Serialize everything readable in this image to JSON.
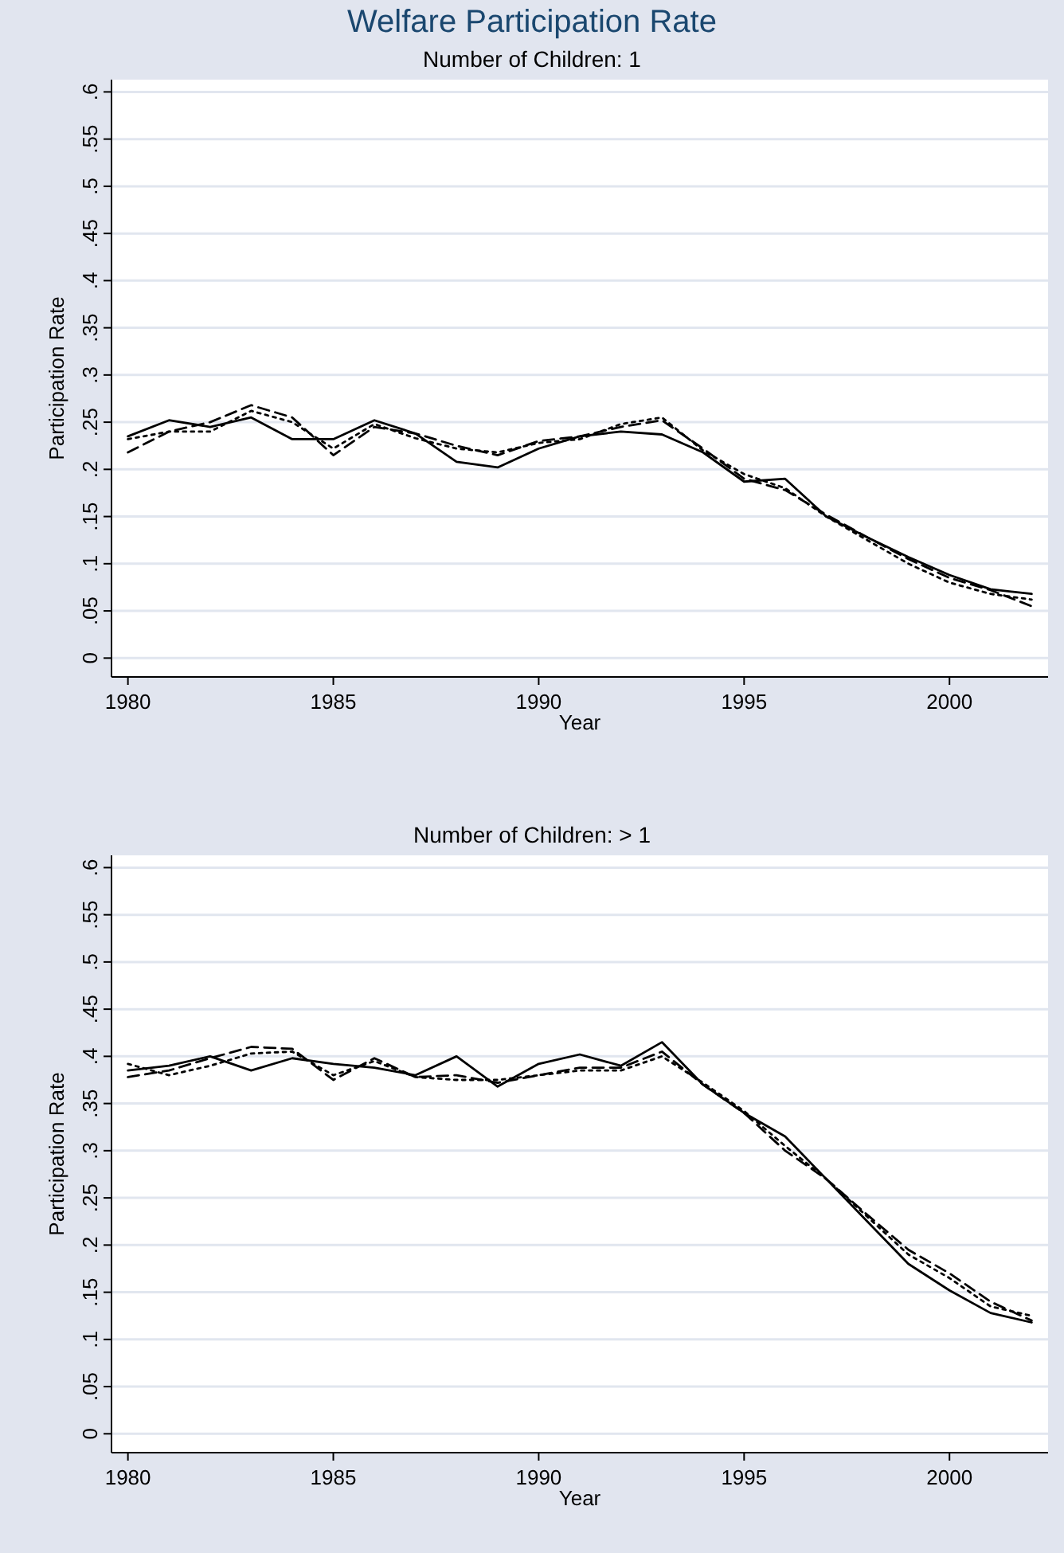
{
  "chart_data": [
    {
      "type": "line",
      "title": "Welfare Participation Rate",
      "subtitle": "Number of Children: 1",
      "xlabel": "Year",
      "ylabel": "Participation Rate",
      "grid": "y",
      "x": [
        1980,
        1981,
        1982,
        1983,
        1984,
        1985,
        1986,
        1987,
        1988,
        1989,
        1990,
        1991,
        1992,
        1993,
        1994,
        1995,
        1996,
        1997,
        1998,
        1999,
        2000,
        2001,
        2002
      ],
      "xlim": [
        1979.6,
        2002.4
      ],
      "xticks": [
        1980,
        1985,
        1990,
        1995,
        2000
      ],
      "ylim": [
        -0.02,
        0.613
      ],
      "yticks": [
        0,
        {
          "value": 0.05,
          "label": ".05"
        },
        {
          "value": 0.1,
          "label": ".1"
        },
        {
          "value": 0.15,
          "label": ".15"
        },
        {
          "value": 0.2,
          "label": ".2"
        },
        {
          "value": 0.25,
          "label": ".25"
        },
        {
          "value": 0.3,
          "label": ".3"
        },
        {
          "value": 0.35,
          "label": ".35"
        },
        {
          "value": 0.4,
          "label": ".4"
        },
        {
          "value": 0.45,
          "label": ".45"
        },
        {
          "value": 0.5,
          "label": ".5"
        },
        {
          "value": 0.55,
          "label": ".55"
        },
        {
          "value": 0.6,
          "label": ".6"
        }
      ],
      "series": [
        {
          "color": "#000000",
          "line_style": "solid",
          "values": [
            0.235,
            0.252,
            0.245,
            0.255,
            0.232,
            0.232,
            0.252,
            0.238,
            0.208,
            0.202,
            0.222,
            0.235,
            0.24,
            0.237,
            0.218,
            0.187,
            0.19,
            0.15,
            0.128,
            0.107,
            0.088,
            0.073,
            0.068
          ]
        },
        {
          "color": "#000000",
          "line_style": "dashed",
          "values": [
            0.218,
            0.24,
            0.25,
            0.268,
            0.255,
            0.215,
            0.245,
            0.238,
            0.225,
            0.215,
            0.23,
            0.235,
            0.245,
            0.252,
            0.222,
            0.19,
            0.178,
            0.152,
            0.128,
            0.105,
            0.085,
            0.072,
            0.055
          ]
        },
        {
          "color": "#000000",
          "line_style": "dotted",
          "values": [
            0.232,
            0.24,
            0.24,
            0.262,
            0.25,
            0.222,
            0.248,
            0.233,
            0.222,
            0.218,
            0.228,
            0.232,
            0.248,
            0.255,
            0.22,
            0.195,
            0.18,
            0.15,
            0.125,
            0.1,
            0.08,
            0.068,
            0.062
          ]
        }
      ]
    },
    {
      "type": "line",
      "title": "Number of Children: > 1",
      "xlabel": "Year",
      "ylabel": "Participation Rate",
      "grid": "y",
      "x": [
        1980,
        1981,
        1982,
        1983,
        1984,
        1985,
        1986,
        1987,
        1988,
        1989,
        1990,
        1991,
        1992,
        1993,
        1994,
        1995,
        1996,
        1997,
        1998,
        1999,
        2000,
        2001,
        2002
      ],
      "xlim": [
        1979.6,
        2002.4
      ],
      "xticks": [
        1980,
        1985,
        1990,
        1995,
        2000
      ],
      "ylim": [
        -0.02,
        0.613
      ],
      "yticks": [
        0,
        {
          "value": 0.05,
          "label": ".05"
        },
        {
          "value": 0.1,
          "label": ".1"
        },
        {
          "value": 0.15,
          "label": ".15"
        },
        {
          "value": 0.2,
          "label": ".2"
        },
        {
          "value": 0.25,
          "label": ".25"
        },
        {
          "value": 0.3,
          "label": ".3"
        },
        {
          "value": 0.35,
          "label": ".35"
        },
        {
          "value": 0.4,
          "label": ".4"
        },
        {
          "value": 0.45,
          "label": ".45"
        },
        {
          "value": 0.5,
          "label": ".5"
        },
        {
          "value": 0.55,
          "label": ".55"
        },
        {
          "value": 0.6,
          "label": ".6"
        }
      ],
      "series": [
        {
          "color": "#000000",
          "line_style": "solid",
          "values": [
            0.385,
            0.39,
            0.4,
            0.385,
            0.398,
            0.392,
            0.388,
            0.38,
            0.4,
            0.368,
            0.392,
            0.402,
            0.39,
            0.415,
            0.37,
            0.34,
            0.315,
            0.27,
            0.225,
            0.18,
            0.152,
            0.128,
            0.118
          ]
        },
        {
          "color": "#000000",
          "line_style": "dashed",
          "values": [
            0.378,
            0.385,
            0.398,
            0.41,
            0.408,
            0.375,
            0.398,
            0.378,
            0.38,
            0.372,
            0.38,
            0.388,
            0.388,
            0.405,
            0.37,
            0.34,
            0.3,
            0.27,
            0.232,
            0.195,
            0.17,
            0.14,
            0.12
          ]
        },
        {
          "color": "#000000",
          "line_style": "dotted",
          "values": [
            0.392,
            0.38,
            0.39,
            0.403,
            0.405,
            0.38,
            0.395,
            0.378,
            0.375,
            0.375,
            0.38,
            0.385,
            0.385,
            0.4,
            0.372,
            0.342,
            0.305,
            0.27,
            0.23,
            0.19,
            0.165,
            0.135,
            0.125
          ]
        }
      ]
    }
  ]
}
